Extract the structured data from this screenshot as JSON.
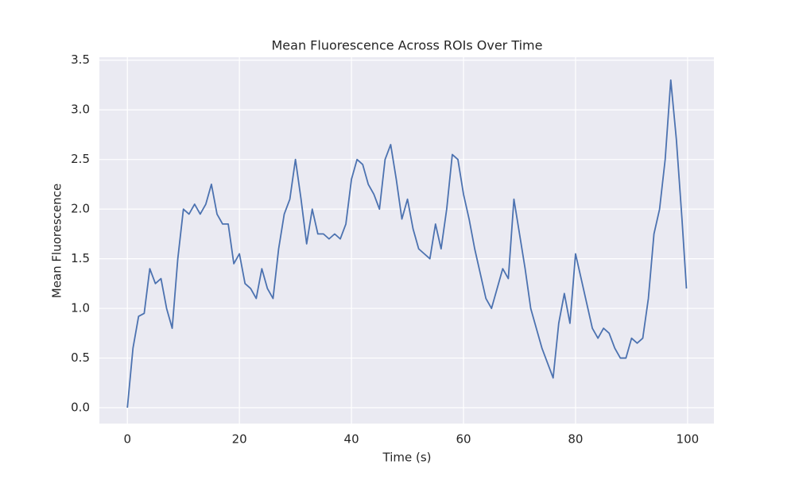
{
  "chart_data": {
    "type": "line",
    "title": "Mean Fluorescence Across ROIs Over Time",
    "xlabel": "Time (s)",
    "ylabel": "Mean Fluorescence",
    "x": [
      0,
      1,
      2,
      3,
      4,
      5,
      6,
      7,
      8,
      9,
      10,
      11,
      12,
      13,
      14,
      15,
      16,
      17,
      18,
      19,
      20,
      21,
      22,
      23,
      24,
      25,
      26,
      27,
      28,
      29,
      30,
      31,
      32,
      33,
      34,
      35,
      36,
      37,
      38,
      39,
      40,
      41,
      42,
      43,
      44,
      45,
      46,
      47,
      48,
      49,
      50,
      51,
      52,
      53,
      54,
      55,
      56,
      57,
      58,
      59,
      60,
      61,
      62,
      63,
      64,
      65,
      66,
      67,
      68,
      69,
      70,
      71,
      72,
      73,
      74,
      75,
      76,
      77,
      78,
      79,
      80,
      81,
      82,
      83,
      84,
      85,
      86,
      87,
      88,
      89,
      90,
      91,
      92,
      93,
      94,
      95,
      96,
      97,
      98,
      99,
      99.8
    ],
    "series": [
      {
        "name": "Mean Fluorescence",
        "color": "#4c72b0",
        "values": [
          0.0,
          0.6,
          0.92,
          0.95,
          1.4,
          1.25,
          1.3,
          1.0,
          0.8,
          1.5,
          2.0,
          1.95,
          2.05,
          1.95,
          2.05,
          2.25,
          1.95,
          1.85,
          1.85,
          1.45,
          1.55,
          1.25,
          1.2,
          1.1,
          1.4,
          1.2,
          1.1,
          1.6,
          1.95,
          2.1,
          2.5,
          2.1,
          1.65,
          2.0,
          1.75,
          1.75,
          1.7,
          1.75,
          1.7,
          1.85,
          2.3,
          2.5,
          2.45,
          2.25,
          2.15,
          2.0,
          2.5,
          2.65,
          2.3,
          1.9,
          2.1,
          1.8,
          1.6,
          1.55,
          1.5,
          1.85,
          1.6,
          2.0,
          2.55,
          2.5,
          2.15,
          1.9,
          1.6,
          1.35,
          1.1,
          1.0,
          1.2,
          1.4,
          1.3,
          2.1,
          1.75,
          1.4,
          1.0,
          0.8,
          0.6,
          0.45,
          0.3,
          0.85,
          1.15,
          0.85,
          1.55,
          1.3,
          1.05,
          0.8,
          0.7,
          0.8,
          0.75,
          0.6,
          0.5,
          0.5,
          0.7,
          0.65,
          0.7,
          1.1,
          1.75,
          2.0,
          2.5,
          3.3,
          2.7,
          1.9,
          1.2
        ]
      }
    ],
    "xlim": [
      -5,
      104.7
    ],
    "xticks": [
      0,
      20,
      40,
      60,
      80,
      100
    ],
    "ylim": [
      -0.16,
      3.53
    ],
    "yticks": [
      {
        "value": 0,
        "label": "0.0"
      },
      0.5,
      {
        "value": 1,
        "label": "1.0"
      },
      1.5,
      {
        "value": 2,
        "label": "2.0"
      },
      2.5,
      {
        "value": 3,
        "label": "3.0"
      },
      3.5
    ],
    "grid": true
  }
}
